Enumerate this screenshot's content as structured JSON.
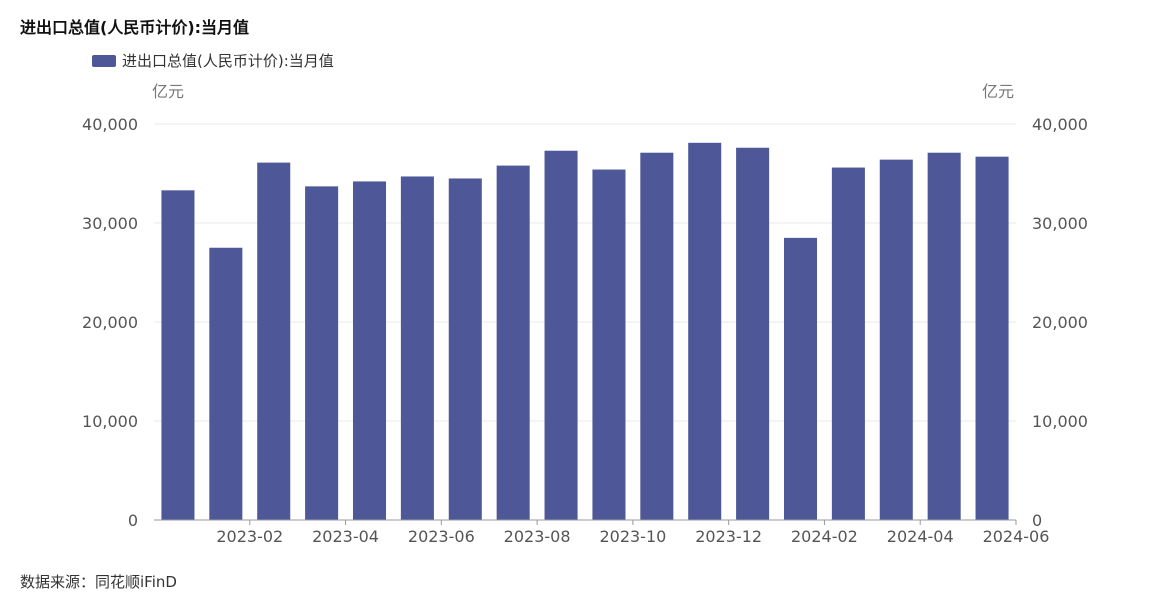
{
  "title": "进出口总值(人民币计价):当月值",
  "source": "数据来源：同花顺iFinD",
  "colors": {
    "bar": "#4e5899",
    "grid": "#eaeaea",
    "axis": "#999999",
    "tick_text": "#555555"
  },
  "chart_data": {
    "type": "bar",
    "title": "进出口总值(人民币计价):当月值",
    "legend": {
      "position": "top-left",
      "entries": [
        "进出口总值(人民币计价):当月值"
      ]
    },
    "y_unit_left": "亿元",
    "y_unit_right": "亿元",
    "ylim": [
      0,
      40000
    ],
    "yticks": [
      0,
      10000,
      20000,
      30000,
      40000
    ],
    "ytick_labels": [
      "0",
      "10,000",
      "20,000",
      "30,000",
      "40,000"
    ],
    "grid": true,
    "categories": [
      "2023-01",
      "2023-02",
      "2023-03",
      "2023-04",
      "2023-05",
      "2023-06",
      "2023-07",
      "2023-08",
      "2023-09",
      "2023-10",
      "2023-11",
      "2023-12",
      "2024-01",
      "2024-02",
      "2024-03",
      "2024-04",
      "2024-05",
      "2024-06"
    ],
    "xtick_labels": [
      "2023-02",
      "2023-04",
      "2023-06",
      "2023-08",
      "2023-10",
      "2023-12",
      "2024-02",
      "2024-04",
      "2024-06"
    ],
    "series": [
      {
        "name": "进出口总值(人民币计价):当月值",
        "values": [
          33300,
          27500,
          36100,
          33700,
          34200,
          34700,
          34500,
          35800,
          37300,
          35400,
          37100,
          38100,
          37600,
          28500,
          35600,
          36400,
          37100,
          36700
        ]
      }
    ]
  }
}
